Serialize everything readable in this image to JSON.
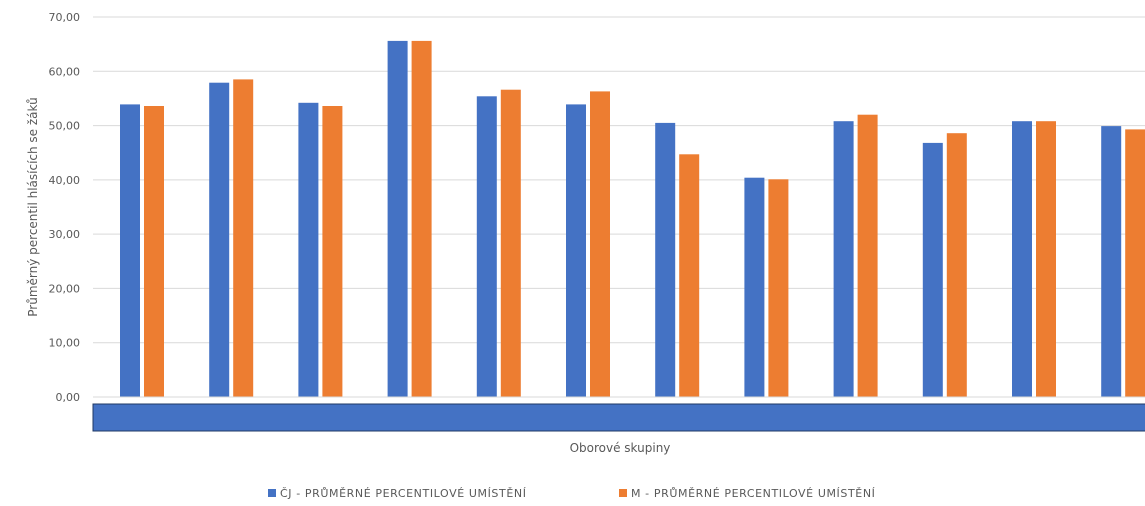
{
  "chart_data": {
    "type": "bar",
    "xlabel": "Oborové skupiny",
    "ylabel": "Průměrný percentil hlásících se žáků",
    "ylim": [
      0,
      70
    ],
    "yticks": [
      "0,00",
      "10,00",
      "20,00",
      "30,00",
      "40,00",
      "50,00",
      "60,00",
      "70,00"
    ],
    "grid": true,
    "legend_position": "bottom",
    "categories": [
      "",
      "",
      "",
      "",
      "",
      "",
      "",
      "",
      "",
      "",
      "",
      ""
    ],
    "series": [
      {
        "name": "ČJ - PRŮMĚRNÉ PERCENTILOVÉ UMÍSTĚNÍ",
        "color": "#4472C4",
        "values": [
          53.9,
          57.9,
          54.2,
          65.6,
          55.4,
          53.9,
          50.5,
          40.4,
          50.8,
          46.8,
          50.8,
          49.9
        ]
      },
      {
        "name": "M - PRŮMĚRNÉ PERCENTILOVÉ UMÍSTĚNÍ",
        "color": "#ED7D31",
        "values": [
          53.6,
          58.5,
          53.6,
          65.6,
          56.6,
          56.3,
          44.7,
          40.1,
          52.0,
          48.6,
          50.8,
          49.3
        ]
      }
    ],
    "category_bar_color": "#4472C4"
  }
}
